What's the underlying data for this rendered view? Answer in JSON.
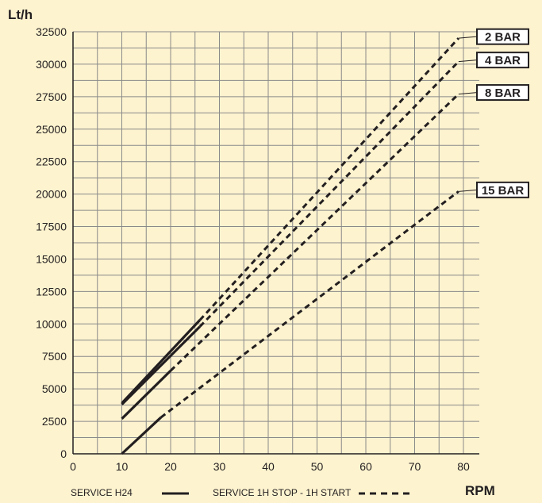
{
  "chart_data": {
    "type": "line",
    "title": "",
    "ylabel": "Lt/h",
    "xlabel": "RPM",
    "xlim": [
      0,
      80
    ],
    "ylim": [
      0,
      32500
    ],
    "x_ticks": [
      0,
      10,
      20,
      30,
      40,
      50,
      60,
      70,
      80
    ],
    "y_ticks": [
      0,
      2500,
      5000,
      7500,
      10000,
      12500,
      15000,
      17500,
      20000,
      22500,
      25000,
      27500,
      30000,
      32500
    ],
    "grid": true,
    "legend": [
      {
        "label": "SERVICE H24",
        "style": "solid"
      },
      {
        "label": "SERVICE 1H STOP - 1H START",
        "style": "dashed"
      }
    ],
    "series": [
      {
        "name": "2 BAR",
        "solid": {
          "x": [
            10,
            26
          ],
          "y": [
            3900,
            10300
          ]
        },
        "dashed": {
          "x": [
            26,
            79
          ],
          "y": [
            10300,
            32000
          ]
        }
      },
      {
        "name": "4 BAR",
        "solid": {
          "x": [
            10,
            26
          ],
          "y": [
            3800,
            9800
          ]
        },
        "dashed": {
          "x": [
            26,
            79
          ],
          "y": [
            9800,
            30200
          ]
        }
      },
      {
        "name": "8 BAR",
        "solid": {
          "x": [
            10,
            20
          ],
          "y": [
            2700,
            6400
          ]
        },
        "dashed": {
          "x": [
            20,
            79
          ],
          "y": [
            6400,
            27700
          ]
        }
      },
      {
        "name": "15 BAR",
        "solid": {
          "x": [
            10,
            18
          ],
          "y": [
            0,
            2800
          ]
        },
        "dashed": {
          "x": [
            18,
            79
          ],
          "y": [
            2800,
            20200
          ]
        }
      }
    ]
  },
  "colors": {
    "background": "#fdf3cf",
    "grid": "#8a8a8a",
    "line": "#231f20",
    "label_box": "#ffffff"
  }
}
